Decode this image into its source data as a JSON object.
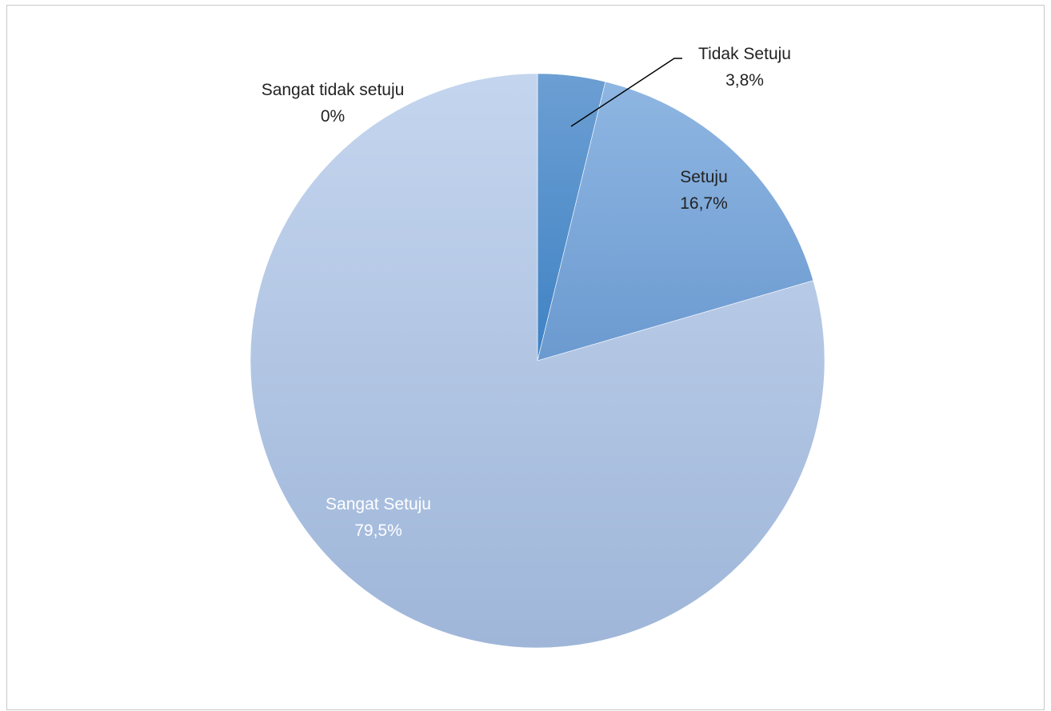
{
  "chart_data": {
    "type": "pie",
    "start_angle_deg": 0,
    "direction": "clockwise",
    "slices": [
      {
        "label": "Tidak Setuju",
        "value": 3.8,
        "value_label": "3,8%",
        "color": "#5b92cc",
        "label_color": "#222222"
      },
      {
        "label": "Setuju",
        "value": 16.7,
        "value_label": "16,7%",
        "color": "#7aa7da",
        "label_color": "#222222"
      },
      {
        "label": "Sangat Setuju",
        "value": 79.5,
        "value_label": "79,5%",
        "color": "#b3c9e8",
        "label_color": "#ffffff"
      },
      {
        "label": "Sangat tidak setuju",
        "value": 0,
        "value_label": "0%",
        "color": "#c6d7ee",
        "label_color": "#222222"
      }
    ]
  }
}
